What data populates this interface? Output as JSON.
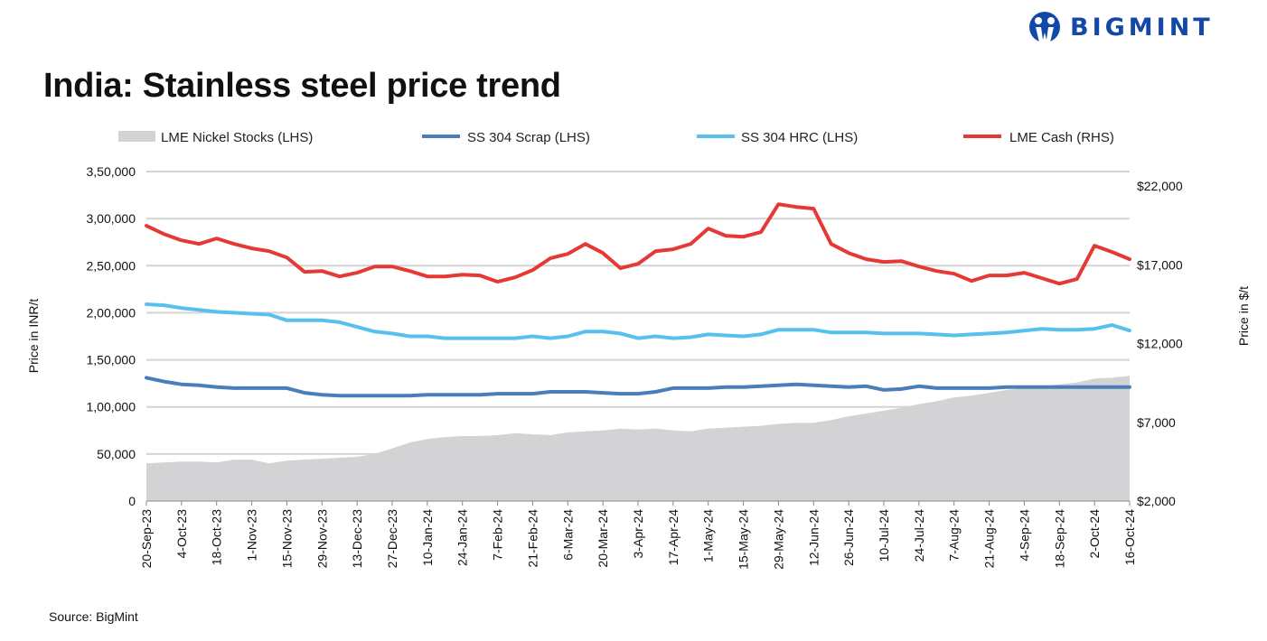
{
  "brand": "BIGMINT",
  "title": "India: Stainless steel price trend",
  "source": "Source: BigMint",
  "chart_data": {
    "type": "line",
    "title": "India: Stainless steel price trend",
    "ylabel": "Price in INR/t",
    "ylabel_right": "Price in $/t",
    "ylim": [
      0,
      350000
    ],
    "ylim_right": [
      2000,
      22000
    ],
    "yticks": [
      "0",
      "50,000",
      "1,00,000",
      "1,50,000",
      "2,00,000",
      "2,50,000",
      "3,00,000",
      "3,50,000"
    ],
    "yticks_right": [
      "$2,000",
      "$7,000",
      "$12,000",
      "$17,000",
      "$22,000"
    ],
    "grid": true,
    "legend_position": "top",
    "x_tick_labels": [
      "20-Sep-23",
      "4-Oct-23",
      "18-Oct-23",
      "1-Nov-23",
      "15-Nov-23",
      "29-Nov-23",
      "13-Dec-23",
      "27-Dec-23",
      "10-Jan-24",
      "24-Jan-24",
      "7-Feb-24",
      "21-Feb-24",
      "6-Mar-24",
      "20-Mar-24",
      "3-Apr-24",
      "17-Apr-24",
      "1-May-24",
      "15-May-24",
      "29-May-24",
      "12-Jun-24",
      "26-Jun-24",
      "10-Jul-24",
      "24-Jul-24",
      "7-Aug-24",
      "21-Aug-24",
      "4-Sep-24",
      "18-Sep-24",
      "2-Oct-24",
      "16-Oct-24"
    ],
    "x_frequency": "weekly, 20-Sep-23 to 16-Oct-24",
    "series": [
      {
        "name": "LME Nickel Stocks (LHS)",
        "type": "area",
        "axis": "left",
        "color": "#d3d3d5",
        "values": [
          40000,
          41000,
          42000,
          42000,
          41000,
          44000,
          44000,
          40000,
          43000,
          44000,
          45000,
          46000,
          47000,
          50000,
          56000,
          62000,
          66000,
          68000,
          69000,
          69000,
          70000,
          72000,
          71000,
          70000,
          73000,
          74000,
          75000,
          77000,
          76000,
          77000,
          75000,
          74000,
          77000,
          78000,
          79000,
          80000,
          82000,
          83000,
          83000,
          86000,
          90000,
          93000,
          96000,
          99000,
          103000,
          106000,
          110000,
          112000,
          115000,
          118000,
          120000,
          122000,
          124000,
          126000,
          130000,
          131000,
          133000
        ]
      },
      {
        "name": "SS 304 Scrap (LHS)",
        "type": "line",
        "axis": "left",
        "color": "#4a7ebb",
        "values": [
          131000,
          127000,
          124000,
          123000,
          121000,
          120000,
          120000,
          120000,
          120000,
          115000,
          113000,
          112000,
          112000,
          112000,
          112000,
          112000,
          113000,
          113000,
          113000,
          113000,
          114000,
          114000,
          114000,
          116000,
          116000,
          116000,
          115000,
          114000,
          114000,
          116000,
          120000,
          120000,
          120000,
          121000,
          121000,
          122000,
          123000,
          124000,
          123000,
          122000,
          121000,
          122000,
          118000,
          119000,
          122000,
          120000,
          120000,
          120000,
          120000,
          121000,
          121000,
          121000,
          121000,
          121000,
          121000,
          121000,
          121000
        ]
      },
      {
        "name": "SS 304 HRC (LHS)",
        "type": "line",
        "axis": "left",
        "color": "#56c0ee",
        "values": [
          209000,
          208000,
          205000,
          203000,
          201000,
          200000,
          199000,
          198000,
          192000,
          192000,
          192000,
          190000,
          185000,
          180000,
          178000,
          175000,
          175000,
          173000,
          173000,
          173000,
          173000,
          173000,
          175000,
          173000,
          175000,
          180000,
          180000,
          178000,
          173000,
          175000,
          173000,
          174000,
          177000,
          176000,
          175000,
          177000,
          182000,
          182000,
          182000,
          179000,
          179000,
          179000,
          178000,
          178000,
          178000,
          177000,
          176000,
          177000,
          178000,
          179000,
          181000,
          183000,
          182000,
          182000,
          183000,
          187000,
          181000
        ]
      },
      {
        "name": "LME Cash (RHS)",
        "type": "line",
        "axis": "right",
        "color": "#e53935",
        "values": [
          19470,
          18950,
          18550,
          18320,
          18670,
          18320,
          18040,
          17860,
          17460,
          16550,
          16600,
          16260,
          16490,
          16890,
          16890,
          16600,
          16260,
          16260,
          16370,
          16320,
          15920,
          16200,
          16660,
          17410,
          17690,
          18320,
          17750,
          16780,
          17060,
          17860,
          17980,
          18320,
          19300,
          18840,
          18780,
          19070,
          20840,
          20670,
          20560,
          18320,
          17750,
          17350,
          17180,
          17230,
          16890,
          16600,
          16430,
          15970,
          16320,
          16320,
          16490,
          16150,
          15800,
          16090,
          18210,
          17810,
          17350
        ]
      }
    ]
  }
}
